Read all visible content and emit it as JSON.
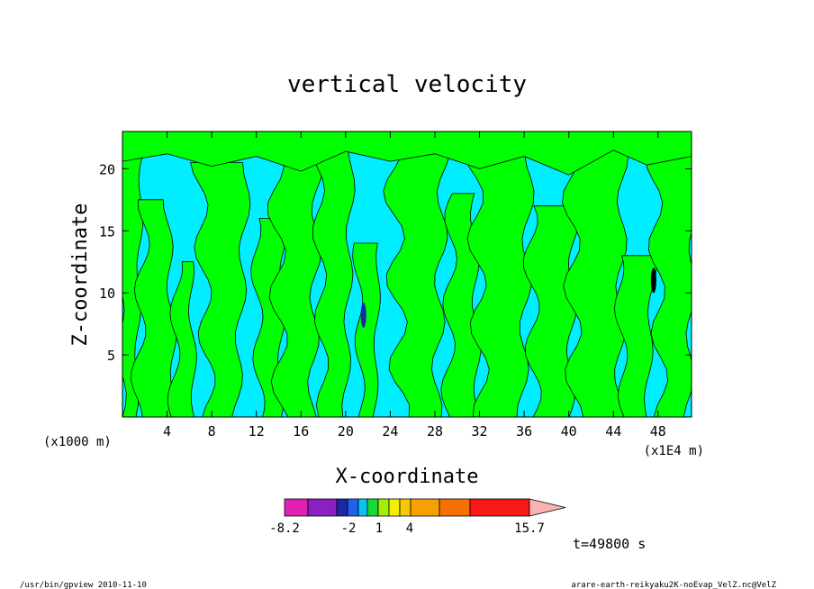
{
  "chart_data": {
    "type": "heatmap",
    "title": "vertical velocity",
    "xlabel": "X-coordinate",
    "ylabel": "Z-coordinate",
    "x_unit_left": "(x1000 m)",
    "x_unit_right": "(x1E4 m)",
    "xlim": [
      0,
      51
    ],
    "ylim": [
      0,
      23
    ],
    "x_ticks": [
      4,
      8,
      12,
      16,
      20,
      24,
      28,
      32,
      36,
      40,
      44,
      48
    ],
    "y_ticks": [
      5,
      10,
      15,
      20
    ],
    "colorbar": {
      "colors": [
        "#e020b0",
        "#8a20c0",
        "#1828a8",
        "#2060f0",
        "#00c8f0",
        "#18d838",
        "#a0f000",
        "#f0f000",
        "#f8c800",
        "#f8a000",
        "#f87000",
        "#f81818",
        "#f87878",
        "#f8b4b4"
      ],
      "tick_labels": [
        "-8.2",
        "-2",
        "1",
        "4",
        "15.7"
      ],
      "colors_used": {
        "positive": "#00ff00",
        "negative": "#00eeff"
      }
    },
    "time_label": "t=49800 s"
  },
  "footer": {
    "left": "/usr/bin/gpview   2010-11-10",
    "right": "arare-earth-reikyaku2K-noEvap_VelZ.nc@VelZ"
  }
}
